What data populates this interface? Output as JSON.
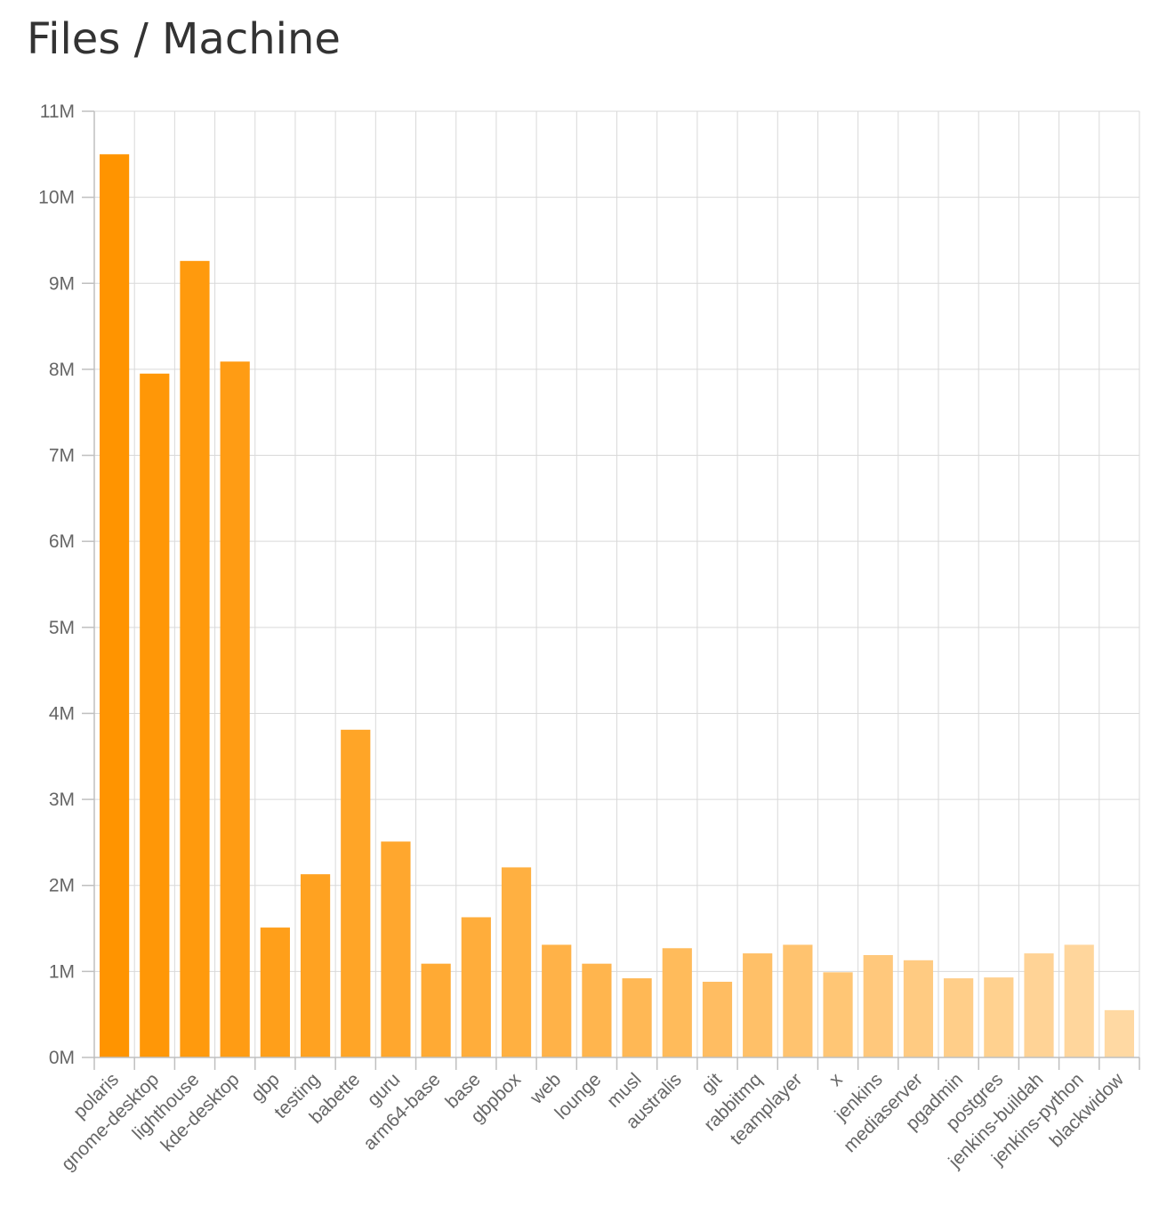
{
  "page": {
    "title": "Files / Machine"
  },
  "chart_data": {
    "type": "bar",
    "title": "Files / Machine",
    "xlabel": "",
    "ylabel": "",
    "ylim": [
      0,
      11000000
    ],
    "yticks": [
      0,
      1000000,
      2000000,
      3000000,
      4000000,
      5000000,
      6000000,
      7000000,
      8000000,
      9000000,
      10000000,
      11000000
    ],
    "ytick_labels": [
      "0M",
      "1M",
      "2M",
      "3M",
      "4M",
      "5M",
      "6M",
      "7M",
      "8M",
      "9M",
      "10M",
      "11M"
    ],
    "grid": true,
    "legend": "none",
    "color_start": "#ff9400",
    "color_end": "#ffd9a3",
    "categories": [
      "polaris",
      "gnome-desktop",
      "lighthouse",
      "kde-desktop",
      "gbp",
      "testing",
      "babette",
      "guru",
      "arm64-base",
      "base",
      "gbpbox",
      "web",
      "lounge",
      "musl",
      "australis",
      "git",
      "rabbitmq",
      "teamplayer",
      "x",
      "jenkins",
      "mediaserver",
      "pgadmin",
      "postgres",
      "jenkins-buildah",
      "jenkins-python",
      "blackwidow"
    ],
    "values": [
      10500000,
      7950000,
      9260000,
      8090000,
      1510000,
      2130000,
      3810000,
      2510000,
      1090000,
      1630000,
      2210000,
      1310000,
      1090000,
      920000,
      1270000,
      880000,
      1210000,
      1310000,
      990000,
      1190000,
      1130000,
      920000,
      930000,
      1210000,
      1310000,
      550000
    ]
  }
}
